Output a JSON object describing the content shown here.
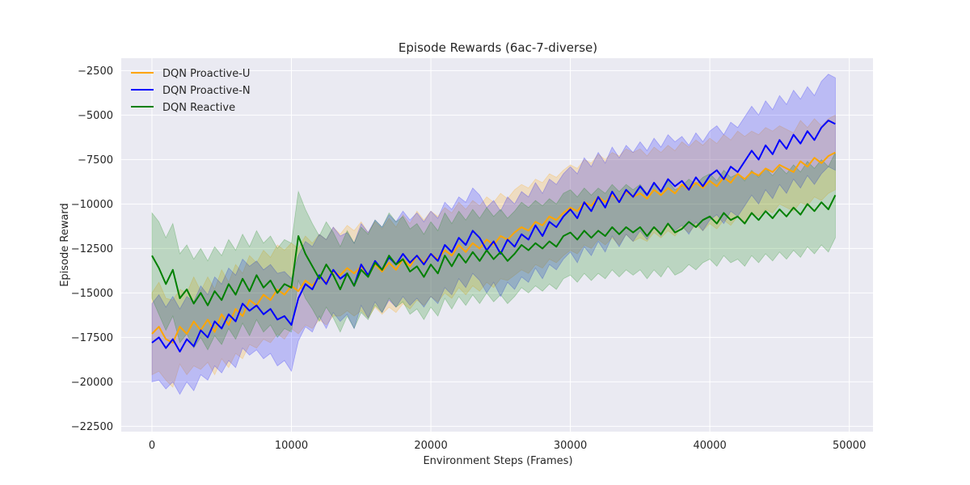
{
  "chart_data": {
    "type": "line",
    "title": "Episode Rewards (6ac-7-diverse)",
    "xlabel": "Environment Steps (Frames)",
    "ylabel": "Episode Reward",
    "xlim": [
      -2200,
      51700
    ],
    "ylim": [
      -22800,
      -1800
    ],
    "xticks": [
      0,
      10000,
      20000,
      30000,
      40000,
      50000
    ],
    "yticks": [
      -22500,
      -20000,
      -17500,
      -15000,
      -12500,
      -10000,
      -7500,
      -5000,
      -2500
    ],
    "grid": true,
    "legend_position": "top-left",
    "background": "#eaeaf2",
    "band_opacity": 0.2,
    "x": [
      0,
      500,
      1000,
      1500,
      2000,
      2500,
      3000,
      3500,
      4000,
      4500,
      5000,
      5500,
      6000,
      6500,
      7000,
      7500,
      8000,
      8500,
      9000,
      9500,
      10000,
      10500,
      11000,
      11500,
      12000,
      12500,
      13000,
      13500,
      14000,
      14500,
      15000,
      15500,
      16000,
      16500,
      17000,
      17500,
      18000,
      18500,
      19000,
      19500,
      20000,
      20500,
      21000,
      21500,
      22000,
      22500,
      23000,
      23500,
      24000,
      24500,
      25000,
      25500,
      26000,
      26500,
      27000,
      27500,
      28000,
      28500,
      29000,
      29500,
      30000,
      30500,
      31000,
      31500,
      32000,
      32500,
      33000,
      33500,
      34000,
      34500,
      35000,
      35500,
      36000,
      36500,
      37000,
      37500,
      38000,
      38500,
      39000,
      39500,
      40000,
      40500,
      41000,
      41500,
      42000,
      42500,
      43000,
      43500,
      44000,
      44500,
      45000,
      45500,
      46000,
      46500,
      47000,
      47500,
      48000,
      48500,
      49000
    ],
    "series": [
      {
        "name": "DQN Proactive-U",
        "color": "#ffa500",
        "mean": [
          -17300,
          -16900,
          -17600,
          -17800,
          -16900,
          -17300,
          -16600,
          -17100,
          -16500,
          -17200,
          -16200,
          -16800,
          -15900,
          -16300,
          -15400,
          -15700,
          -15100,
          -15400,
          -14800,
          -15100,
          -14600,
          -14900,
          -14300,
          -14600,
          -14100,
          -14400,
          -13800,
          -14000,
          -13600,
          -13900,
          -13500,
          -14000,
          -13400,
          -13800,
          -13300,
          -13700,
          -13100,
          -13500,
          -12900,
          -13300,
          -12800,
          -13100,
          -12600,
          -12900,
          -12300,
          -12700,
          -12200,
          -12500,
          -12000,
          -12300,
          -11800,
          -12000,
          -11600,
          -11300,
          -11500,
          -11000,
          -11200,
          -10700,
          -10900,
          -10500,
          -10200,
          -10400,
          -9900,
          -10100,
          -9600,
          -9900,
          -9500,
          -9800,
          -9300,
          -9600,
          -9400,
          -9700,
          -9200,
          -9500,
          -9100,
          -9400,
          -8900,
          -9200,
          -8800,
          -9100,
          -8700,
          -9000,
          -8500,
          -8800,
          -8300,
          -8600,
          -8200,
          -8400,
          -8000,
          -8200,
          -7800,
          -8000,
          -8200,
          -7600,
          -7900,
          -7400,
          -7700,
          -7300,
          -7100
        ],
        "upper": [
          -15000,
          -14400,
          -15300,
          -15400,
          -14800,
          -15000,
          -14100,
          -14900,
          -14100,
          -14800,
          -13700,
          -14400,
          -13400,
          -13900,
          -12900,
          -13300,
          -12600,
          -13000,
          -12300,
          -12600,
          -12200,
          -12500,
          -11800,
          -12200,
          -11700,
          -12000,
          -11300,
          -11700,
          -11200,
          -11500,
          -11000,
          -11600,
          -11000,
          -11400,
          -10800,
          -11300,
          -10600,
          -11100,
          -10400,
          -10900,
          -10400,
          -10700,
          -10200,
          -10500,
          -9900,
          -10300,
          -9800,
          -10100,
          -9600,
          -9900,
          -9400,
          -9700,
          -9200,
          -8900,
          -9100,
          -8600,
          -8800,
          -8300,
          -8500,
          -8100,
          -7800,
          -8000,
          -7500,
          -7700,
          -7200,
          -7500,
          -7100,
          -7300,
          -6900,
          -7100,
          -6900,
          -7300,
          -6800,
          -7100,
          -6700,
          -7000,
          -6500,
          -6800,
          -6400,
          -6700,
          -6300,
          -6600,
          -6100,
          -6400,
          -5900,
          -6200,
          -5900,
          -6100,
          -5700,
          -5900,
          -5600,
          -5800,
          -6000,
          -5300,
          -5700,
          -5200,
          -5600,
          -5200,
          -5000
        ],
        "lower": [
          -19600,
          -19400,
          -19900,
          -20300,
          -19000,
          -19600,
          -19100,
          -19300,
          -18900,
          -19600,
          -18700,
          -19200,
          -18400,
          -18700,
          -17900,
          -18100,
          -17600,
          -17800,
          -17300,
          -17600,
          -17000,
          -17300,
          -16800,
          -17000,
          -16500,
          -16800,
          -16300,
          -16300,
          -16000,
          -16300,
          -16000,
          -16400,
          -15800,
          -16200,
          -15800,
          -16100,
          -15600,
          -15900,
          -15400,
          -15700,
          -15200,
          -15500,
          -15000,
          -15300,
          -14700,
          -15100,
          -14600,
          -14900,
          -14400,
          -14700,
          -14200,
          -14300,
          -14000,
          -13700,
          -13900,
          -13400,
          -13600,
          -13100,
          -13300,
          -12900,
          -12600,
          -12800,
          -12300,
          -12500,
          -12000,
          -12300,
          -11900,
          -12300,
          -11700,
          -12100,
          -11900,
          -12100,
          -11600,
          -11900,
          -11500,
          -11800,
          -11300,
          -11600,
          -11200,
          -11500,
          -11100,
          -11400,
          -10900,
          -11200,
          -10700,
          -11000,
          -10500,
          -10700,
          -10300,
          -10500,
          -10000,
          -10200,
          -10400,
          -9900,
          -10100,
          -9600,
          -9800,
          -9400,
          -9200
        ]
      },
      {
        "name": "DQN Proactive-N",
        "color": "#0000ff",
        "mean": [
          -17800,
          -17500,
          -18100,
          -17600,
          -18300,
          -17600,
          -18000,
          -17100,
          -17500,
          -16600,
          -17000,
          -16200,
          -16600,
          -15600,
          -16000,
          -15700,
          -16200,
          -15900,
          -16500,
          -16300,
          -16800,
          -15300,
          -14500,
          -14800,
          -14000,
          -14500,
          -13700,
          -14200,
          -13900,
          -14600,
          -13400,
          -14000,
          -13200,
          -13700,
          -13000,
          -13400,
          -12800,
          -13300,
          -12900,
          -13400,
          -12800,
          -13200,
          -12300,
          -12700,
          -11900,
          -12300,
          -11500,
          -11900,
          -12600,
          -12100,
          -12800,
          -12000,
          -12400,
          -11700,
          -12000,
          -11200,
          -11800,
          -11000,
          -11300,
          -10700,
          -10300,
          -10800,
          -9900,
          -10400,
          -9600,
          -10200,
          -9300,
          -9900,
          -9200,
          -9600,
          -9000,
          -9500,
          -8800,
          -9300,
          -8600,
          -9000,
          -8700,
          -9200,
          -8500,
          -9000,
          -8400,
          -8100,
          -8600,
          -7900,
          -8200,
          -7600,
          -7000,
          -7500,
          -6700,
          -7200,
          -6400,
          -6900,
          -6100,
          -6600,
          -5900,
          -6400,
          -5700,
          -5300,
          -5500
        ],
        "upper": [
          -15600,
          -15100,
          -15800,
          -15200,
          -15900,
          -15200,
          -15500,
          -14600,
          -15100,
          -14100,
          -14500,
          -13600,
          -14000,
          -13100,
          -13500,
          -13200,
          -13700,
          -13400,
          -13900,
          -13800,
          -14200,
          -12900,
          -12100,
          -12400,
          -11700,
          -12000,
          -11300,
          -11800,
          -11600,
          -12200,
          -11100,
          -11600,
          -10900,
          -11300,
          -10600,
          -11000,
          -10400,
          -10900,
          -10500,
          -11000,
          -10400,
          -10800,
          -9900,
          -10300,
          -9600,
          -9900,
          -9100,
          -9500,
          -10200,
          -9800,
          -10400,
          -9600,
          -10000,
          -9300,
          -9600,
          -8800,
          -9400,
          -8600,
          -8900,
          -8300,
          -7900,
          -8300,
          -7400,
          -7900,
          -7100,
          -7700,
          -6800,
          -7400,
          -6700,
          -7100,
          -6500,
          -7000,
          -6300,
          -6800,
          -6100,
          -6500,
          -6200,
          -6700,
          -6000,
          -6500,
          -5900,
          -5600,
          -6100,
          -5400,
          -5700,
          -5100,
          -4500,
          -5000,
          -4200,
          -4700,
          -3900,
          -4400,
          -3600,
          -4100,
          -3400,
          -3900,
          -3100,
          -2700,
          -2900
        ],
        "lower": [
          -20000,
          -19900,
          -20400,
          -20000,
          -20700,
          -20000,
          -20500,
          -19600,
          -19900,
          -19100,
          -19500,
          -18800,
          -19200,
          -18100,
          -18500,
          -18200,
          -18700,
          -18400,
          -19100,
          -18800,
          -19400,
          -17700,
          -16900,
          -17200,
          -16300,
          -17000,
          -16100,
          -16600,
          -16200,
          -17000,
          -15700,
          -16400,
          -15500,
          -16100,
          -15400,
          -15800,
          -15200,
          -15700,
          -15300,
          -15800,
          -15200,
          -15600,
          -14700,
          -15100,
          -14200,
          -14700,
          -13900,
          -14300,
          -15000,
          -14400,
          -15200,
          -14400,
          -14800,
          -14100,
          -14400,
          -13600,
          -14200,
          -13400,
          -13700,
          -13100,
          -12700,
          -13300,
          -12400,
          -12900,
          -12100,
          -12700,
          -11800,
          -12400,
          -11700,
          -12100,
          -11500,
          -12000,
          -11300,
          -11800,
          -11100,
          -11500,
          -11200,
          -11700,
          -11000,
          -11500,
          -10900,
          -10600,
          -11100,
          -10400,
          -10700,
          -10100,
          -9500,
          -10000,
          -9200,
          -9700,
          -8900,
          -9400,
          -8600,
          -9100,
          -8400,
          -8900,
          -8300,
          -7900,
          -8100
        ]
      },
      {
        "name": "DQN Reactive",
        "color": "#008000",
        "mean": [
          -12900,
          -13600,
          -14500,
          -13700,
          -15300,
          -14800,
          -15600,
          -15000,
          -15700,
          -14900,
          -15400,
          -14500,
          -15100,
          -14200,
          -14900,
          -14000,
          -14700,
          -14300,
          -15000,
          -14500,
          -14700,
          -11800,
          -12800,
          -13500,
          -14200,
          -13400,
          -14000,
          -14800,
          -13900,
          -14600,
          -13700,
          -14100,
          -13300,
          -13700,
          -12900,
          -13400,
          -13100,
          -13800,
          -13500,
          -14100,
          -13400,
          -13900,
          -12900,
          -13500,
          -12800,
          -13300,
          -12700,
          -13200,
          -12600,
          -13100,
          -12700,
          -13200,
          -12800,
          -12300,
          -12600,
          -12200,
          -12500,
          -12100,
          -12400,
          -11800,
          -11600,
          -12000,
          -11500,
          -11900,
          -11500,
          -11800,
          -11300,
          -11700,
          -11300,
          -11600,
          -11300,
          -11800,
          -11300,
          -11700,
          -11100,
          -11600,
          -11400,
          -11000,
          -11300,
          -10900,
          -10700,
          -11100,
          -10500,
          -10900,
          -10700,
          -11100,
          -10500,
          -10900,
          -10400,
          -10800,
          -10300,
          -10700,
          -10200,
          -10600,
          -10000,
          -10400,
          -9900,
          -10300,
          -9500
        ],
        "upper": [
          -10500,
          -11000,
          -11900,
          -11100,
          -12800,
          -12300,
          -13100,
          -12500,
          -13200,
          -12400,
          -12900,
          -12000,
          -12600,
          -11700,
          -12400,
          -11500,
          -12200,
          -11800,
          -12500,
          -12000,
          -12200,
          -9300,
          -10300,
          -11100,
          -11800,
          -11000,
          -11600,
          -12400,
          -11500,
          -12200,
          -11300,
          -11700,
          -10900,
          -11300,
          -10500,
          -11000,
          -10700,
          -11400,
          -11100,
          -11700,
          -11000,
          -11500,
          -10500,
          -11100,
          -10400,
          -10900,
          -10300,
          -10800,
          -10200,
          -10700,
          -10300,
          -10800,
          -10400,
          -9900,
          -10200,
          -9800,
          -10100,
          -9700,
          -10000,
          -9400,
          -9200,
          -9600,
          -9100,
          -9500,
          -9100,
          -9400,
          -8900,
          -9300,
          -8900,
          -9200,
          -8900,
          -9400,
          -8900,
          -9300,
          -8700,
          -9200,
          -9000,
          -8600,
          -8900,
          -8500,
          -8300,
          -8700,
          -8100,
          -8500,
          -8300,
          -8700,
          -8100,
          -8500,
          -8000,
          -8400,
          -7900,
          -8300,
          -7800,
          -8200,
          -7600,
          -8000,
          -7500,
          -7900,
          -7100
        ],
        "lower": [
          -15300,
          -16200,
          -17100,
          -16300,
          -17800,
          -17300,
          -18100,
          -17500,
          -18200,
          -17400,
          -17900,
          -17000,
          -17600,
          -16700,
          -17400,
          -16500,
          -17200,
          -16800,
          -17500,
          -17000,
          -17200,
          -14300,
          -15300,
          -15900,
          -16600,
          -15800,
          -16400,
          -17200,
          -16300,
          -17000,
          -16100,
          -16500,
          -15700,
          -16100,
          -15300,
          -15800,
          -15500,
          -16200,
          -15900,
          -16500,
          -15800,
          -16300,
          -15300,
          -15900,
          -15200,
          -15700,
          -15100,
          -15600,
          -15000,
          -15500,
          -15100,
          -15600,
          -15200,
          -14700,
          -15000,
          -14600,
          -14900,
          -14500,
          -14800,
          -14200,
          -14000,
          -14400,
          -13900,
          -14300,
          -13900,
          -14200,
          -13700,
          -14100,
          -13700,
          -14000,
          -13700,
          -14200,
          -13700,
          -14100,
          -13500,
          -14000,
          -13800,
          -13400,
          -13700,
          -13300,
          -13100,
          -13500,
          -12900,
          -13300,
          -13100,
          -13500,
          -12900,
          -13300,
          -12800,
          -13200,
          -12700,
          -13100,
          -12600,
          -13000,
          -12400,
          -12800,
          -12300,
          -12700,
          -11900
        ]
      }
    ]
  }
}
